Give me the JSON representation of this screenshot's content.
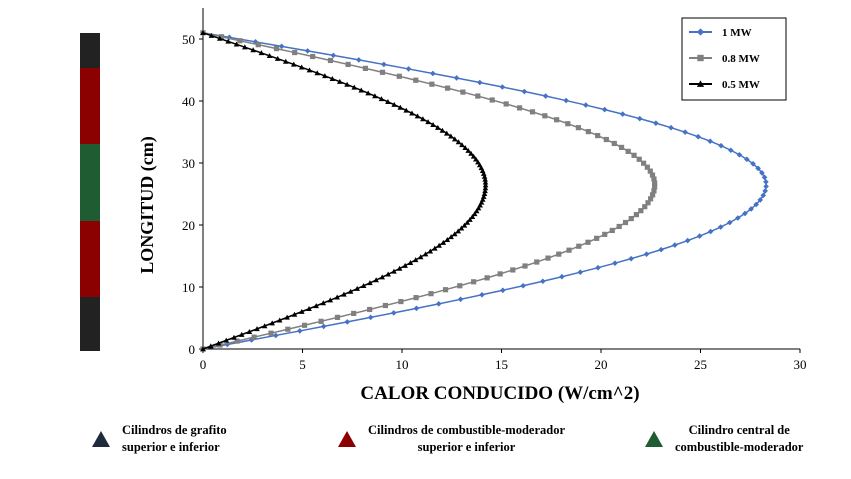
{
  "chart_data": {
    "type": "line",
    "xlabel": "CALOR CONDUCIDO  (W/cm^2)",
    "ylabel": "LONGITUD  (cm)",
    "xlim": [
      0,
      30
    ],
    "ylim": [
      0,
      55
    ],
    "xticks": [
      0,
      5,
      10,
      15,
      20,
      25,
      30
    ],
    "yticks": [
      0,
      10,
      20,
      30,
      40,
      50
    ],
    "x_tick_labels": [
      "0",
      "5",
      "10",
      "15",
      "20",
      "25",
      "30"
    ],
    "y_tick_labels": [
      "0",
      "10",
      "20",
      "30",
      "40",
      "50"
    ],
    "legend_position": "top-right",
    "series": [
      {
        "name": "1 MW",
        "color": "#4472c4",
        "marker": "diamond",
        "peak_value": 28.3,
        "peak_at": 26.5,
        "length": 51,
        "points": 70
      },
      {
        "name": "0.8 MW",
        "color": "#808080",
        "marker": "square",
        "peak_value": 22.7,
        "peak_at": 26.5,
        "length": 51,
        "points": 80
      },
      {
        "name": "0.5 MW",
        "color": "#000000",
        "marker": "triangle",
        "peak_value": 14.2,
        "peak_at": 26.5,
        "length": 51,
        "points": 110
      }
    ]
  },
  "fuel_stack": {
    "segments": [
      {
        "name": "graphite-top",
        "color": "#222222",
        "fraction": 0.11
      },
      {
        "name": "fuel-upper",
        "color": "#8b0000",
        "fraction": 0.24
      },
      {
        "name": "fuel-central",
        "color": "#1f5c32",
        "fraction": 0.24
      },
      {
        "name": "fuel-lower",
        "color": "#8b0000",
        "fraction": 0.24
      },
      {
        "name": "graphite-bottom",
        "color": "#222222",
        "fraction": 0.17
      }
    ]
  },
  "legend_bottom": [
    {
      "color": "#1f2a3c",
      "line1": "Cilindros  de  grafito",
      "line2": "superior  e inferior"
    },
    {
      "color": "#8b0000",
      "line1": "Cilindros  de  combustible-moderador",
      "line2": "superior  e inferior"
    },
    {
      "color": "#1f5c32",
      "line1": "Cilindro  central  de",
      "line2": "combustible-moderador"
    }
  ]
}
